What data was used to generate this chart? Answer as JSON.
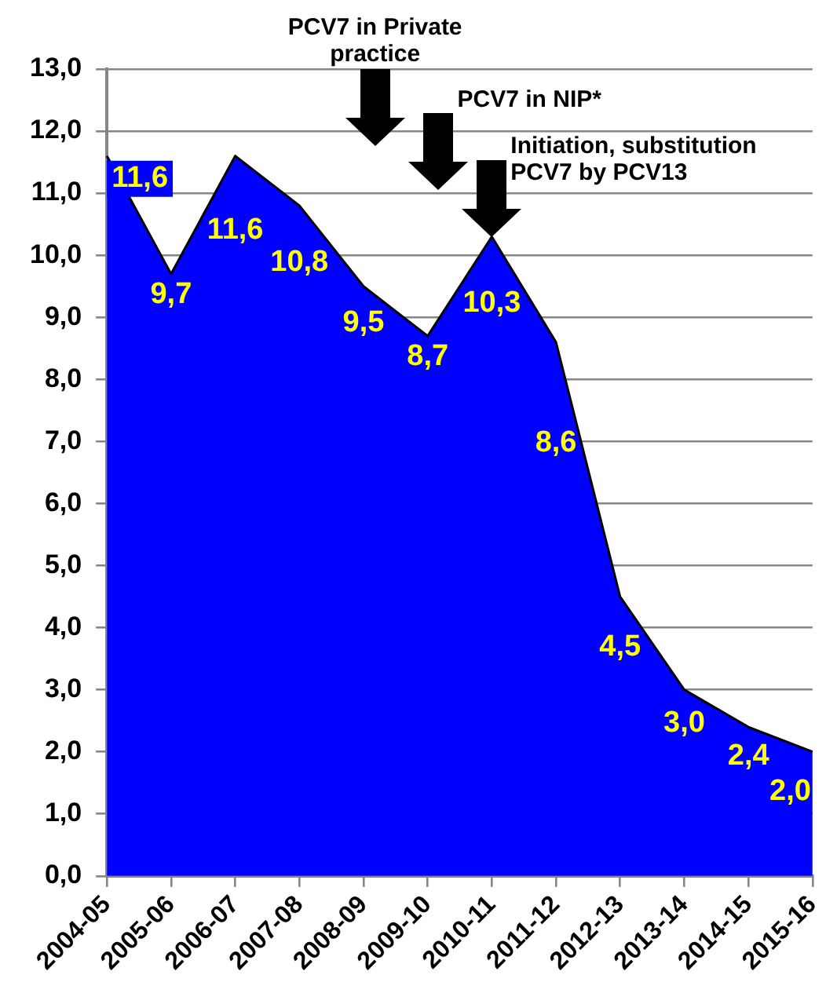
{
  "chart_data": {
    "type": "area",
    "categories": [
      "2004-05",
      "2005-06",
      "2006-07",
      "2007-08",
      "2008-09",
      "2009-10",
      "2010-11",
      "2011-12",
      "2012-13",
      "2013-14",
      "2014-15",
      "2015-16"
    ],
    "values": [
      11.6,
      9.7,
      11.6,
      10.8,
      9.5,
      8.7,
      10.3,
      8.6,
      4.5,
      3.0,
      2.4,
      2.0
    ],
    "value_labels": [
      "11,6",
      "9,7",
      "11,6",
      "10,8",
      "9,5",
      "8,7",
      "10,3",
      "8,6",
      "4,5",
      "3,0",
      "2,4",
      "2,0"
    ],
    "color": "#0000ff",
    "ylim": [
      0,
      13
    ],
    "yticks": [
      {
        "value": 0,
        "label": "0,0"
      },
      {
        "value": 1,
        "label": "1,0"
      },
      {
        "value": 2,
        "label": "2,0"
      },
      {
        "value": 3,
        "label": "3,0"
      },
      {
        "value": 4,
        "label": "4,0"
      },
      {
        "value": 5,
        "label": "5,0"
      },
      {
        "value": 6,
        "label": "6,0"
      },
      {
        "value": 7,
        "label": "7,0"
      },
      {
        "value": 8,
        "label": "8,0"
      },
      {
        "value": 9,
        "label": "9,0"
      },
      {
        "value": 10,
        "label": "10,0"
      },
      {
        "value": 11,
        "label": "11,0"
      },
      {
        "value": 12,
        "label": "12,0"
      },
      {
        "value": 13,
        "label": "13,0"
      }
    ],
    "grid": "y",
    "annotations": [
      "PCV7 in Private practice",
      "PCV7 in NIP*",
      {
        "text": "Initiation, substitution PCV7 by PCV13",
        "x": "2010-11",
        "y": 10.3
      }
    ]
  }
}
